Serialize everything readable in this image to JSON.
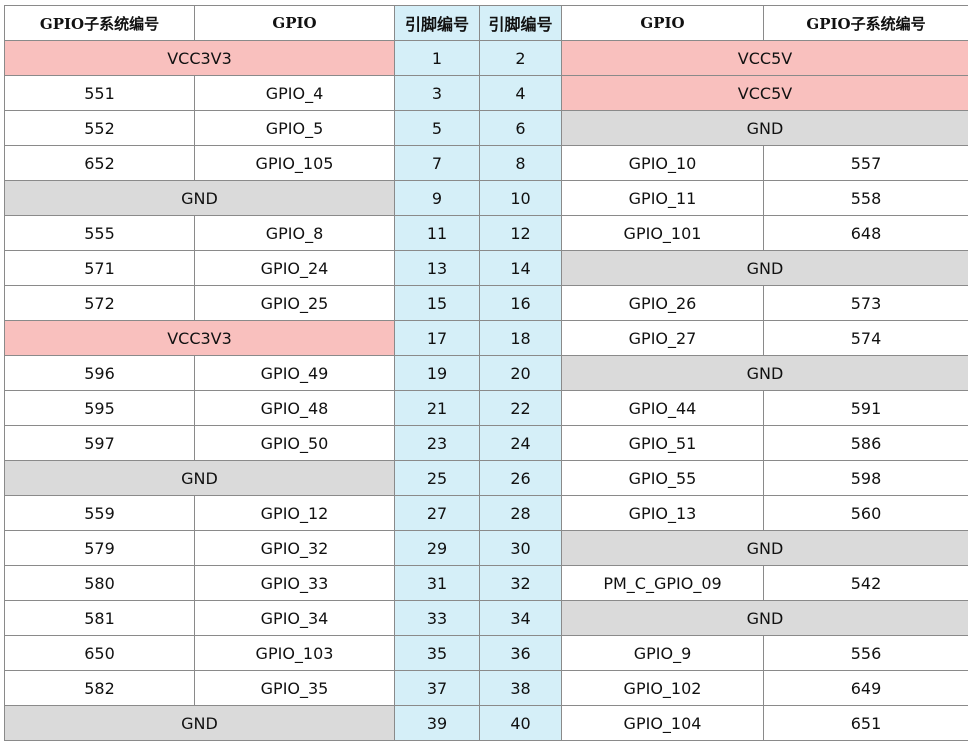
{
  "headers": [
    "GPIO子系统编号",
    "GPIO",
    "引脚编号",
    "引脚编号",
    "GPIO",
    "GPIO子系统编号"
  ],
  "colors": {
    "power": "#f9c0be",
    "ground": "#dadada",
    "pin": "#d5eff8"
  },
  "rows": [
    {
      "left": {
        "type": "power",
        "label": "VCC3V3"
      },
      "pin_left": "1",
      "pin_right": "2",
      "right": {
        "type": "power",
        "label": "VCC5V"
      }
    },
    {
      "left": {
        "type": "gpio",
        "num": "551",
        "name": "GPIO_4"
      },
      "pin_left": "3",
      "pin_right": "4",
      "right": {
        "type": "power",
        "label": "VCC5V"
      }
    },
    {
      "left": {
        "type": "gpio",
        "num": "552",
        "name": "GPIO_5"
      },
      "pin_left": "5",
      "pin_right": "6",
      "right": {
        "type": "ground",
        "label": "GND"
      }
    },
    {
      "left": {
        "type": "gpio",
        "num": "652",
        "name": "GPIO_105"
      },
      "pin_left": "7",
      "pin_right": "8",
      "right": {
        "type": "gpio",
        "name": "GPIO_10",
        "num": "557"
      }
    },
    {
      "left": {
        "type": "ground",
        "label": "GND"
      },
      "pin_left": "9",
      "pin_right": "10",
      "right": {
        "type": "gpio",
        "name": "GPIO_11",
        "num": "558"
      }
    },
    {
      "left": {
        "type": "gpio",
        "num": "555",
        "name": "GPIO_8"
      },
      "pin_left": "11",
      "pin_right": "12",
      "right": {
        "type": "gpio",
        "name": "GPIO_101",
        "num": "648"
      }
    },
    {
      "left": {
        "type": "gpio",
        "num": "571",
        "name": "GPIO_24"
      },
      "pin_left": "13",
      "pin_right": "14",
      "right": {
        "type": "ground",
        "label": "GND"
      }
    },
    {
      "left": {
        "type": "gpio",
        "num": "572",
        "name": "GPIO_25"
      },
      "pin_left": "15",
      "pin_right": "16",
      "right": {
        "type": "gpio",
        "name": "GPIO_26",
        "num": "573"
      }
    },
    {
      "left": {
        "type": "power",
        "label": "VCC3V3"
      },
      "pin_left": "17",
      "pin_right": "18",
      "right": {
        "type": "gpio",
        "name": "GPIO_27",
        "num": "574"
      }
    },
    {
      "left": {
        "type": "gpio",
        "num": "596",
        "name": "GPIO_49"
      },
      "pin_left": "19",
      "pin_right": "20",
      "right": {
        "type": "ground",
        "label": "GND"
      }
    },
    {
      "left": {
        "type": "gpio",
        "num": "595",
        "name": "GPIO_48"
      },
      "pin_left": "21",
      "pin_right": "22",
      "right": {
        "type": "gpio",
        "name": "GPIO_44",
        "num": "591"
      }
    },
    {
      "left": {
        "type": "gpio",
        "num": "597",
        "name": "GPIO_50"
      },
      "pin_left": "23",
      "pin_right": "24",
      "right": {
        "type": "gpio",
        "name": "GPIO_51",
        "num": "586"
      }
    },
    {
      "left": {
        "type": "ground",
        "label": "GND"
      },
      "pin_left": "25",
      "pin_right": "26",
      "right": {
        "type": "gpio",
        "name": "GPIO_55",
        "num": "598"
      }
    },
    {
      "left": {
        "type": "gpio",
        "num": "559",
        "name": "GPIO_12"
      },
      "pin_left": "27",
      "pin_right": "28",
      "right": {
        "type": "gpio",
        "name": "GPIO_13",
        "num": "560"
      }
    },
    {
      "left": {
        "type": "gpio",
        "num": "579",
        "name": "GPIO_32"
      },
      "pin_left": "29",
      "pin_right": "30",
      "right": {
        "type": "ground",
        "label": "GND"
      }
    },
    {
      "left": {
        "type": "gpio",
        "num": "580",
        "name": "GPIO_33"
      },
      "pin_left": "31",
      "pin_right": "32",
      "right": {
        "type": "gpio",
        "name": "PM_C_GPIO_09",
        "num": "542"
      }
    },
    {
      "left": {
        "type": "gpio",
        "num": "581",
        "name": "GPIO_34"
      },
      "pin_left": "33",
      "pin_right": "34",
      "right": {
        "type": "ground",
        "label": "GND"
      }
    },
    {
      "left": {
        "type": "gpio",
        "num": "650",
        "name": "GPIO_103"
      },
      "pin_left": "35",
      "pin_right": "36",
      "right": {
        "type": "gpio",
        "name": "GPIO_9",
        "num": "556"
      }
    },
    {
      "left": {
        "type": "gpio",
        "num": "582",
        "name": "GPIO_35"
      },
      "pin_left": "37",
      "pin_right": "38",
      "right": {
        "type": "gpio",
        "name": "GPIO_102",
        "num": "649"
      }
    },
    {
      "left": {
        "type": "ground",
        "label": "GND"
      },
      "pin_left": "39",
      "pin_right": "40",
      "right": {
        "type": "gpio",
        "name": "GPIO_104",
        "num": "651"
      }
    }
  ]
}
